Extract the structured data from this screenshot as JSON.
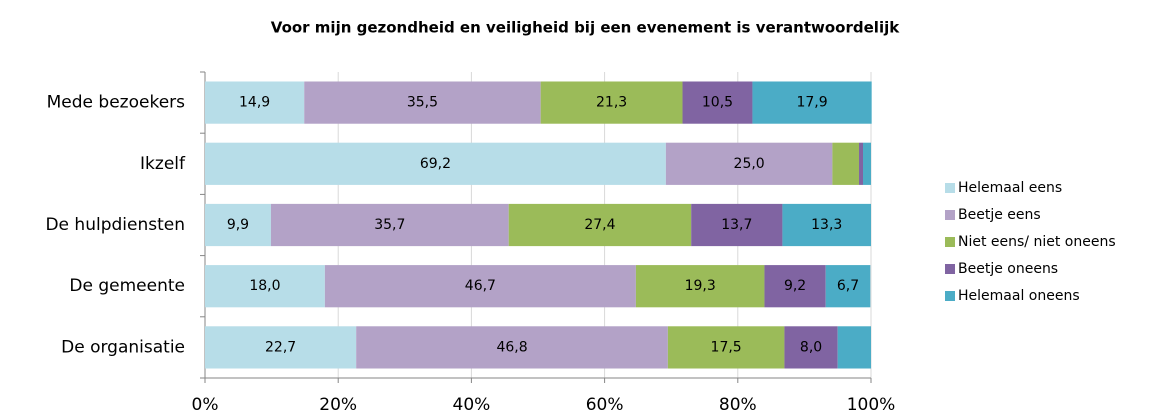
{
  "chart_data": {
    "type": "stacked-bar-horizontal",
    "title": "Voor mijn gezondheid  en veiligheid bij een evenement is verantwoordelijk",
    "categories": [
      "Mede bezoekers",
      "Ikzelf",
      "De hulpdiensten",
      "De gemeente",
      "De organisatie"
    ],
    "series": [
      {
        "name": "Helemaal eens",
        "color": "#b7dde8",
        "values": [
          14.9,
          69.2,
          9.9,
          18.0,
          22.7
        ],
        "value_labels": [
          "14,9",
          "69,2",
          "9,9",
          "18,0",
          "22,7"
        ]
      },
      {
        "name": "Beetje eens",
        "color": "#b3a2c7",
        "values": [
          35.5,
          25.0,
          35.7,
          46.7,
          46.8
        ],
        "value_labels": [
          "35,5",
          "25,0",
          "35,7",
          "46,7",
          "46,8"
        ]
      },
      {
        "name": "Niet eens/ niet oneens",
        "color": "#9bbb59",
        "values": [
          21.3,
          4.0,
          27.4,
          19.3,
          17.5
        ],
        "value_labels": [
          "21,3",
          null,
          "27,4",
          "19,3",
          "17,5"
        ]
      },
      {
        "name": "Beetje oneens",
        "color": "#8064a2",
        "values": [
          10.5,
          0.6,
          13.7,
          9.2,
          8.0
        ],
        "value_labels": [
          "10,5",
          null,
          "13,7",
          "9,2",
          "8,0"
        ]
      },
      {
        "name": "Helemaal oneens",
        "color": "#4bacc6",
        "values": [
          17.9,
          1.2,
          13.3,
          6.7,
          5.0
        ],
        "value_labels": [
          "17,9",
          null,
          "13,3",
          "6,7",
          null
        ]
      }
    ],
    "xlim": [
      0,
      100
    ],
    "xticks": [
      {
        "value": 0,
        "label": "0%"
      },
      {
        "value": 20,
        "label": "20%"
      },
      {
        "value": 40,
        "label": "40%"
      },
      {
        "value": 60,
        "label": "60%"
      },
      {
        "value": 80,
        "label": "80%"
      },
      {
        "value": 100,
        "label": "100%"
      }
    ],
    "grid": true,
    "legend": "right"
  }
}
